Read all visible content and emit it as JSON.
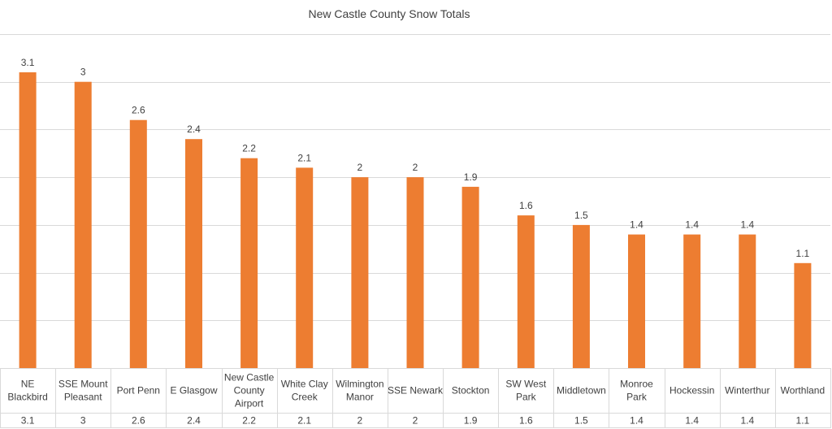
{
  "chart_data": {
    "type": "bar",
    "title": "New Castle County Snow Totals",
    "categories": [
      [
        "NE",
        "Blackbird"
      ],
      [
        "SSE Mount",
        "Pleasant"
      ],
      [
        "Port Penn"
      ],
      [
        "E Glasgow"
      ],
      [
        "New Castle",
        "County",
        "Airport"
      ],
      [
        "White Clay",
        "Creek"
      ],
      [
        "Wilmington",
        "Manor"
      ],
      [
        "SSE Newark"
      ],
      [
        "Stockton"
      ],
      [
        "SW West",
        "Park"
      ],
      [
        "Middletown"
      ],
      [
        "Monroe",
        "Park"
      ],
      [
        "Hockessin"
      ],
      [
        "Winterthur"
      ],
      [
        "Worthland"
      ]
    ],
    "values": [
      3.1,
      3,
      2.6,
      2.4,
      2.2,
      2.1,
      2,
      2,
      1.9,
      1.6,
      1.5,
      1.4,
      1.4,
      1.4,
      1.1
    ],
    "value_labels": [
      "3.1",
      "3",
      "2.6",
      "2.4",
      "2.2",
      "2.1",
      "2",
      "2",
      "1.9",
      "1.6",
      "1.5",
      "1.4",
      "1.4",
      "1.4",
      "1.1"
    ],
    "ylim": [
      0,
      3.5
    ],
    "grid": true,
    "data_table": true,
    "colors": {
      "bar": "#ED7D31",
      "grid": "#D9D9D9",
      "text": "#404040"
    }
  }
}
